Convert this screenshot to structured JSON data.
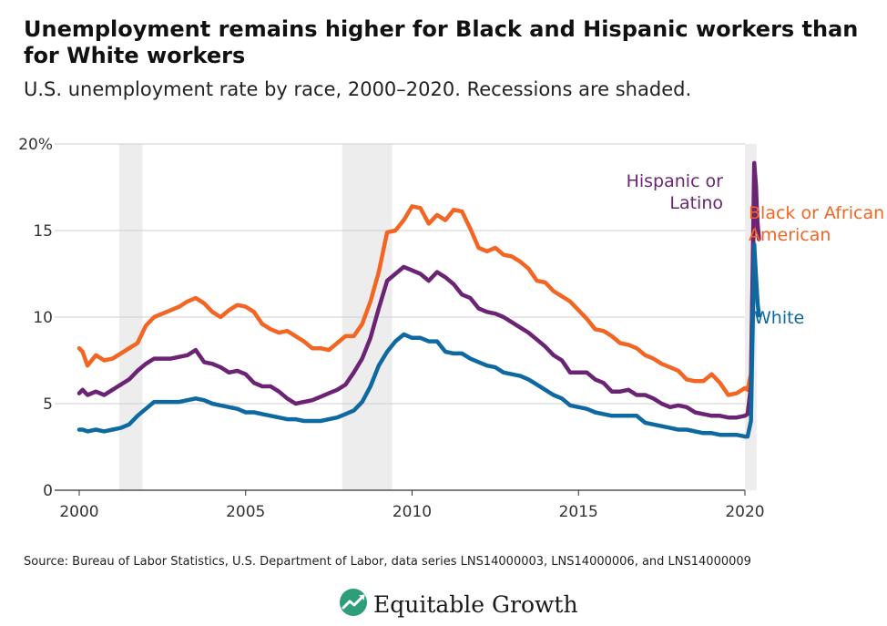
{
  "title": "Unemployment remains higher for Black and Hispanic workers than for White workers",
  "subtitle": "U.S. unemployment rate by race, 2000–2020. Recessions are shaded.",
  "source": "Source: Bureau of Labor Statistics, U.S. Department of Labor, data series LNS14000003, LNS14000006, and LNS14000009",
  "brand": {
    "name": "Equitable Growth",
    "logo_icon": "growth-chart-logo-icon"
  },
  "chart_data": {
    "type": "line",
    "title": "Unemployment remains higher for Black and Hispanic workers than for White workers",
    "subtitle": "U.S. unemployment rate by race, 2000–2020. Recessions are shaded.",
    "xlabel": "",
    "ylabel": "",
    "xlim": [
      2000,
      2020.5
    ],
    "ylim": [
      0,
      20
    ],
    "x_ticks": [
      2000,
      2005,
      2010,
      2015,
      2020
    ],
    "x_tick_labels": [
      "2000",
      "2005",
      "2010",
      "2015",
      "2020"
    ],
    "y_ticks": [
      0,
      5,
      10,
      15,
      20
    ],
    "y_tick_labels": [
      "0",
      "5",
      "10",
      "15",
      "20%"
    ],
    "grid": "horizontal",
    "recessions": [
      [
        2001.2,
        2001.9
      ],
      [
        2007.9,
        2009.4
      ],
      [
        2020.0,
        2020.35
      ]
    ],
    "series": [
      {
        "name": "Black or African American",
        "color": "#f26522",
        "points": [
          [
            2000.0,
            8.2
          ],
          [
            2000.1,
            8.0
          ],
          [
            2000.25,
            7.2
          ],
          [
            2000.5,
            7.8
          ],
          [
            2000.75,
            7.5
          ],
          [
            2001.0,
            7.6
          ],
          [
            2001.25,
            7.9
          ],
          [
            2001.5,
            8.2
          ],
          [
            2001.75,
            8.5
          ],
          [
            2002.0,
            9.5
          ],
          [
            2002.25,
            10.0
          ],
          [
            2002.5,
            10.2
          ],
          [
            2002.75,
            10.4
          ],
          [
            2003.0,
            10.6
          ],
          [
            2003.25,
            10.9
          ],
          [
            2003.5,
            11.1
          ],
          [
            2003.75,
            10.8
          ],
          [
            2004.0,
            10.3
          ],
          [
            2004.25,
            10.0
          ],
          [
            2004.5,
            10.4
          ],
          [
            2004.75,
            10.7
          ],
          [
            2005.0,
            10.6
          ],
          [
            2005.25,
            10.3
          ],
          [
            2005.5,
            9.6
          ],
          [
            2005.75,
            9.3
          ],
          [
            2006.0,
            9.1
          ],
          [
            2006.25,
            9.2
          ],
          [
            2006.5,
            8.9
          ],
          [
            2006.75,
            8.6
          ],
          [
            2007.0,
            8.2
          ],
          [
            2007.25,
            8.2
          ],
          [
            2007.5,
            8.1
          ],
          [
            2007.75,
            8.5
          ],
          [
            2008.0,
            8.9
          ],
          [
            2008.25,
            8.9
          ],
          [
            2008.5,
            9.6
          ],
          [
            2008.75,
            10.9
          ],
          [
            2009.0,
            12.6
          ],
          [
            2009.25,
            14.9
          ],
          [
            2009.5,
            15.0
          ],
          [
            2009.75,
            15.6
          ],
          [
            2010.0,
            16.4
          ],
          [
            2010.25,
            16.3
          ],
          [
            2010.5,
            15.4
          ],
          [
            2010.75,
            15.9
          ],
          [
            2011.0,
            15.6
          ],
          [
            2011.25,
            16.2
          ],
          [
            2011.5,
            16.1
          ],
          [
            2011.75,
            15.1
          ],
          [
            2012.0,
            14.0
          ],
          [
            2012.25,
            13.8
          ],
          [
            2012.5,
            14.0
          ],
          [
            2012.75,
            13.6
          ],
          [
            2013.0,
            13.5
          ],
          [
            2013.25,
            13.2
          ],
          [
            2013.5,
            12.8
          ],
          [
            2013.75,
            12.1
          ],
          [
            2014.0,
            12.0
          ],
          [
            2014.25,
            11.5
          ],
          [
            2014.5,
            11.2
          ],
          [
            2014.75,
            10.9
          ],
          [
            2015.0,
            10.4
          ],
          [
            2015.25,
            9.9
          ],
          [
            2015.5,
            9.3
          ],
          [
            2015.75,
            9.2
          ],
          [
            2016.0,
            8.9
          ],
          [
            2016.25,
            8.5
          ],
          [
            2016.5,
            8.4
          ],
          [
            2016.75,
            8.2
          ],
          [
            2017.0,
            7.8
          ],
          [
            2017.25,
            7.6
          ],
          [
            2017.5,
            7.3
          ],
          [
            2017.75,
            7.1
          ],
          [
            2018.0,
            6.9
          ],
          [
            2018.25,
            6.4
          ],
          [
            2018.5,
            6.3
          ],
          [
            2018.75,
            6.3
          ],
          [
            2019.0,
            6.7
          ],
          [
            2019.25,
            6.2
          ],
          [
            2019.5,
            5.5
          ],
          [
            2019.75,
            5.6
          ],
          [
            2020.0,
            5.9
          ],
          [
            2020.08,
            5.8
          ],
          [
            2020.18,
            6.7
          ],
          [
            2020.28,
            16.7
          ],
          [
            2020.33,
            16.8
          ],
          [
            2020.38,
            15.4
          ],
          [
            2020.42,
            14.6
          ]
        ]
      },
      {
        "name": "Hispanic or Latino",
        "color": "#6b2374",
        "points": [
          [
            2000.0,
            5.6
          ],
          [
            2000.1,
            5.8
          ],
          [
            2000.25,
            5.5
          ],
          [
            2000.5,
            5.7
          ],
          [
            2000.75,
            5.5
          ],
          [
            2001.0,
            5.8
          ],
          [
            2001.25,
            6.1
          ],
          [
            2001.5,
            6.4
          ],
          [
            2001.75,
            6.9
          ],
          [
            2002.0,
            7.3
          ],
          [
            2002.25,
            7.6
          ],
          [
            2002.5,
            7.6
          ],
          [
            2002.75,
            7.6
          ],
          [
            2003.0,
            7.7
          ],
          [
            2003.25,
            7.8
          ],
          [
            2003.5,
            8.1
          ],
          [
            2003.75,
            7.4
          ],
          [
            2004.0,
            7.3
          ],
          [
            2004.25,
            7.1
          ],
          [
            2004.5,
            6.8
          ],
          [
            2004.75,
            6.9
          ],
          [
            2005.0,
            6.7
          ],
          [
            2005.25,
            6.2
          ],
          [
            2005.5,
            6.0
          ],
          [
            2005.75,
            6.0
          ],
          [
            2006.0,
            5.7
          ],
          [
            2006.25,
            5.3
          ],
          [
            2006.5,
            5.0
          ],
          [
            2006.75,
            5.1
          ],
          [
            2007.0,
            5.2
          ],
          [
            2007.25,
            5.4
          ],
          [
            2007.5,
            5.6
          ],
          [
            2007.75,
            5.8
          ],
          [
            2008.0,
            6.1
          ],
          [
            2008.25,
            6.8
          ],
          [
            2008.5,
            7.6
          ],
          [
            2008.75,
            8.8
          ],
          [
            2009.0,
            10.5
          ],
          [
            2009.25,
            12.1
          ],
          [
            2009.5,
            12.5
          ],
          [
            2009.75,
            12.9
          ],
          [
            2010.0,
            12.7
          ],
          [
            2010.25,
            12.5
          ],
          [
            2010.5,
            12.1
          ],
          [
            2010.75,
            12.6
          ],
          [
            2011.0,
            12.3
          ],
          [
            2011.25,
            11.9
          ],
          [
            2011.5,
            11.3
          ],
          [
            2011.75,
            11.1
          ],
          [
            2012.0,
            10.5
          ],
          [
            2012.25,
            10.3
          ],
          [
            2012.5,
            10.2
          ],
          [
            2012.75,
            10.0
          ],
          [
            2013.0,
            9.7
          ],
          [
            2013.25,
            9.4
          ],
          [
            2013.5,
            9.1
          ],
          [
            2013.75,
            8.7
          ],
          [
            2014.0,
            8.3
          ],
          [
            2014.25,
            7.8
          ],
          [
            2014.5,
            7.5
          ],
          [
            2014.75,
            6.8
          ],
          [
            2015.0,
            6.8
          ],
          [
            2015.25,
            6.8
          ],
          [
            2015.5,
            6.4
          ],
          [
            2015.75,
            6.2
          ],
          [
            2016.0,
            5.7
          ],
          [
            2016.25,
            5.7
          ],
          [
            2016.5,
            5.8
          ],
          [
            2016.75,
            5.5
          ],
          [
            2017.0,
            5.5
          ],
          [
            2017.25,
            5.3
          ],
          [
            2017.5,
            5.0
          ],
          [
            2017.75,
            4.8
          ],
          [
            2018.0,
            4.9
          ],
          [
            2018.25,
            4.8
          ],
          [
            2018.5,
            4.5
          ],
          [
            2018.75,
            4.4
          ],
          [
            2019.0,
            4.3
          ],
          [
            2019.25,
            4.3
          ],
          [
            2019.5,
            4.2
          ],
          [
            2019.75,
            4.2
          ],
          [
            2020.0,
            4.3
          ],
          [
            2020.08,
            4.4
          ],
          [
            2020.18,
            6.0
          ],
          [
            2020.28,
            18.9
          ],
          [
            2020.33,
            17.6
          ],
          [
            2020.38,
            15.3
          ],
          [
            2020.42,
            14.5
          ]
        ]
      },
      {
        "name": "White",
        "color": "#0f69a1",
        "points": [
          [
            2000.0,
            3.5
          ],
          [
            2000.1,
            3.5
          ],
          [
            2000.25,
            3.4
          ],
          [
            2000.5,
            3.5
          ],
          [
            2000.75,
            3.4
          ],
          [
            2001.0,
            3.5
          ],
          [
            2001.25,
            3.6
          ],
          [
            2001.5,
            3.8
          ],
          [
            2001.75,
            4.3
          ],
          [
            2002.0,
            4.7
          ],
          [
            2002.25,
            5.1
          ],
          [
            2002.5,
            5.1
          ],
          [
            2002.75,
            5.1
          ],
          [
            2003.0,
            5.1
          ],
          [
            2003.25,
            5.2
          ],
          [
            2003.5,
            5.3
          ],
          [
            2003.75,
            5.2
          ],
          [
            2004.0,
            5.0
          ],
          [
            2004.25,
            4.9
          ],
          [
            2004.5,
            4.8
          ],
          [
            2004.75,
            4.7
          ],
          [
            2005.0,
            4.5
          ],
          [
            2005.25,
            4.5
          ],
          [
            2005.5,
            4.4
          ],
          [
            2005.75,
            4.3
          ],
          [
            2006.0,
            4.2
          ],
          [
            2006.25,
            4.1
          ],
          [
            2006.5,
            4.1
          ],
          [
            2006.75,
            4.0
          ],
          [
            2007.0,
            4.0
          ],
          [
            2007.25,
            4.0
          ],
          [
            2007.5,
            4.1
          ],
          [
            2007.75,
            4.2
          ],
          [
            2008.0,
            4.4
          ],
          [
            2008.25,
            4.6
          ],
          [
            2008.5,
            5.1
          ],
          [
            2008.75,
            6.0
          ],
          [
            2009.0,
            7.2
          ],
          [
            2009.25,
            8.0
          ],
          [
            2009.5,
            8.6
          ],
          [
            2009.75,
            9.0
          ],
          [
            2010.0,
            8.8
          ],
          [
            2010.25,
            8.8
          ],
          [
            2010.5,
            8.6
          ],
          [
            2010.75,
            8.6
          ],
          [
            2011.0,
            8.0
          ],
          [
            2011.25,
            7.9
          ],
          [
            2011.5,
            7.9
          ],
          [
            2011.75,
            7.6
          ],
          [
            2012.0,
            7.4
          ],
          [
            2012.25,
            7.2
          ],
          [
            2012.5,
            7.1
          ],
          [
            2012.75,
            6.8
          ],
          [
            2013.0,
            6.7
          ],
          [
            2013.25,
            6.6
          ],
          [
            2013.5,
            6.4
          ],
          [
            2013.75,
            6.1
          ],
          [
            2014.0,
            5.8
          ],
          [
            2014.25,
            5.5
          ],
          [
            2014.5,
            5.3
          ],
          [
            2014.75,
            4.9
          ],
          [
            2015.0,
            4.8
          ],
          [
            2015.25,
            4.7
          ],
          [
            2015.5,
            4.5
          ],
          [
            2015.75,
            4.4
          ],
          [
            2016.0,
            4.3
          ],
          [
            2016.25,
            4.3
          ],
          [
            2016.5,
            4.3
          ],
          [
            2016.75,
            4.3
          ],
          [
            2017.0,
            3.9
          ],
          [
            2017.25,
            3.8
          ],
          [
            2017.5,
            3.7
          ],
          [
            2017.75,
            3.6
          ],
          [
            2018.0,
            3.5
          ],
          [
            2018.25,
            3.5
          ],
          [
            2018.5,
            3.4
          ],
          [
            2018.75,
            3.3
          ],
          [
            2019.0,
            3.3
          ],
          [
            2019.25,
            3.2
          ],
          [
            2019.5,
            3.2
          ],
          [
            2019.75,
            3.2
          ],
          [
            2020.0,
            3.1
          ],
          [
            2020.08,
            3.1
          ],
          [
            2020.18,
            4.0
          ],
          [
            2020.28,
            14.2
          ],
          [
            2020.33,
            12.4
          ],
          [
            2020.38,
            10.8
          ],
          [
            2020.42,
            10.1
          ]
        ]
      }
    ]
  }
}
